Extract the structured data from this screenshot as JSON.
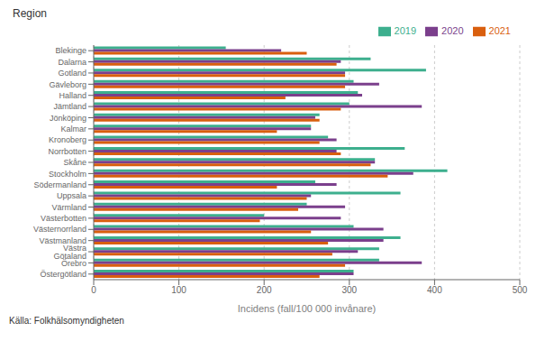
{
  "chart_data": {
    "type": "bar",
    "orientation": "horizontal",
    "title": "Region",
    "xlabel": "Incidens (fall/100 000 invånare)",
    "annotations": [
      "Källa: Folkhälsomyndigheten"
    ],
    "categories": [
      "Blekinge",
      "Dalarna",
      "Gotland",
      "Gävleborg",
      "Halland",
      "Jämtland",
      "Jönköping",
      "Kalmar",
      "Kronoberg",
      "Norrbotten",
      "Skåne",
      "Stockholm",
      "Södermanland",
      "Uppsala",
      "Värmland",
      "Västerbotten",
      "Västernorrland",
      "Västmanland",
      "Västra Götaland",
      "Örebro",
      "Östergötland"
    ],
    "series": [
      {
        "name": "2019",
        "color": "#3daf8e",
        "values": [
          155,
          325,
          390,
          305,
          310,
          300,
          265,
          255,
          275,
          365,
          330,
          415,
          260,
          360,
          250,
          200,
          305,
          360,
          335,
          335,
          305
        ]
      },
      {
        "name": "2020",
        "color": "#7b3f8c",
        "values": [
          220,
          290,
          295,
          335,
          315,
          385,
          260,
          255,
          285,
          285,
          330,
          375,
          285,
          255,
          295,
          290,
          340,
          340,
          310,
          385,
          305
        ]
      },
      {
        "name": "2021",
        "color": "#d95f0e",
        "values": [
          250,
          285,
          295,
          295,
          225,
          290,
          265,
          215,
          265,
          290,
          325,
          345,
          215,
          250,
          240,
          195,
          255,
          275,
          280,
          295,
          265
        ]
      }
    ],
    "xlim": [
      0,
      500
    ],
    "xticks": [
      0,
      100,
      200,
      300,
      400,
      500
    ],
    "grid": true,
    "legend": "upper right"
  }
}
